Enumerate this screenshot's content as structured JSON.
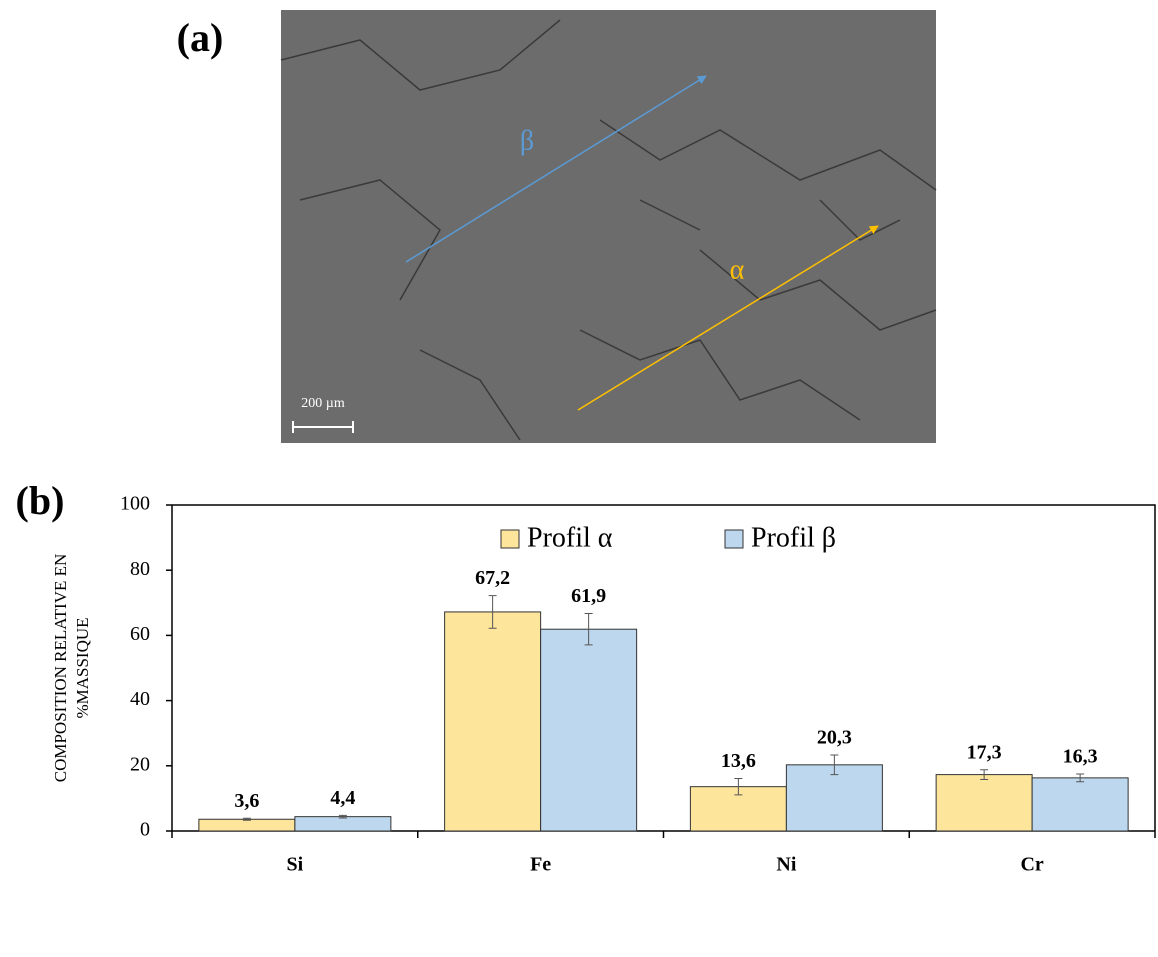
{
  "panels": {
    "a": {
      "label": "(a)",
      "annotations": {
        "beta": "β",
        "alpha": "α"
      },
      "scale_bar": "200 µm"
    },
    "b": {
      "label": "(b)"
    }
  },
  "chart_data": {
    "type": "bar",
    "y_label": [
      "COMPOSITION RELATIVE EN",
      "%MASSIQUE"
    ],
    "categories": [
      "Si",
      "Fe",
      "Ni",
      "Cr"
    ],
    "series": [
      {
        "name": "Profil α",
        "color": "#fde59c",
        "values": [
          3.6,
          67.2,
          13.6,
          17.3
        ],
        "value_labels": [
          "3,6",
          "67,2",
          "13,6",
          "17,3"
        ],
        "errors": [
          0.3,
          5,
          2.5,
          1.5
        ]
      },
      {
        "name": "Profil β",
        "color": "#bdd7ee",
        "values": [
          4.4,
          61.9,
          20.3,
          16.3
        ],
        "value_labels": [
          "4,4",
          "61,9",
          "20,3",
          "16,3"
        ],
        "errors": [
          0.4,
          4.8,
          3,
          1.2
        ]
      }
    ],
    "ylim": [
      0,
      100
    ],
    "yticks": [
      0,
      20,
      40,
      60,
      80,
      100
    ],
    "legend": "top"
  }
}
